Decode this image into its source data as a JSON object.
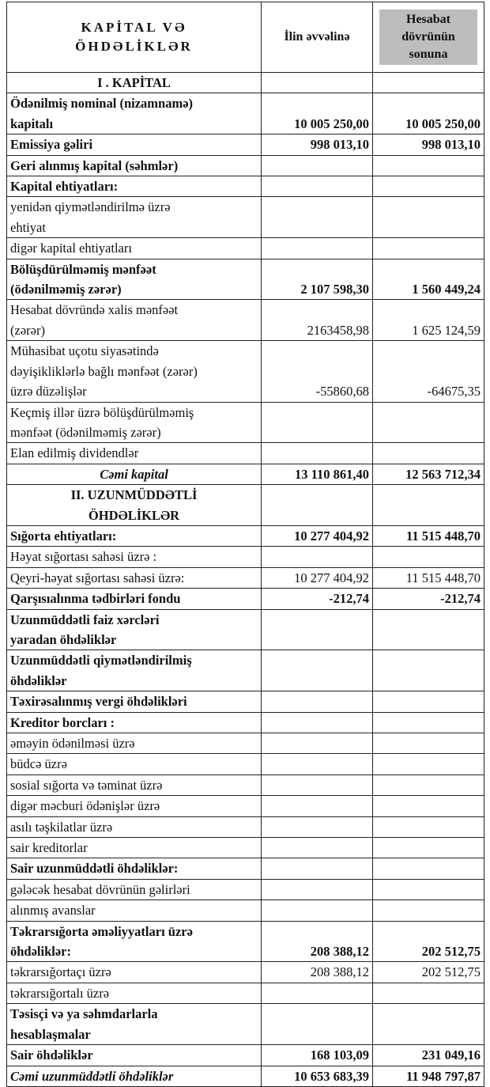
{
  "header": {
    "title": [
      "KAPİTAL VƏ",
      "ÖHDƏLİKLƏR"
    ],
    "start": "İlin əvvəlinə",
    "end": [
      "Hesabat",
      "dövrünün",
      "sonuna"
    ]
  },
  "table": {
    "rows": [
      {
        "label": [
          "I . KAPİTAL"
        ]
      },
      {
        "label": [
          "Ödənilmiş nominal (nizamnamə)",
          "kapitalı"
        ],
        "start": "10 005 250,00",
        "end": "10 005 250,00"
      },
      {
        "label": [
          "Emissiya gəliri"
        ],
        "start": "998 013,10",
        "end": "998 013,10"
      },
      {
        "label": [
          "Geri alınmış kapital (səhmlər)"
        ]
      },
      {
        "label": [
          "Kapital ehtiyatları:"
        ]
      },
      {
        "label": [
          "yenidən qiymətləndirilmə üzrə",
          "ehtiyat"
        ]
      },
      {
        "label": [
          "digər kapital ehtiyatları"
        ]
      },
      {
        "label": [
          "Bölüşdürülməmiş mənfəət",
          "(ödənilməmiş zərər)"
        ],
        "start": "2 107 598,30",
        "end": "1 560 449,24"
      },
      {
        "label": [
          "Hesabat dövründə xalis mənfəət",
          "(zərər)"
        ],
        "start": "2163458,98",
        "end": "1 625 124,59"
      },
      {
        "label": [
          "Mühasibat uçotu siyasətində",
          "dəyişikliklərlə bağlı mənfəət (zərər)",
          "üzrə düzəlişlər"
        ],
        "start": "-55860,68",
        "end": "-64675,35"
      },
      {
        "label": [
          "Keçmiş illər üzrə bölüşdürülməmiş",
          "mənfəət (ödənilməmiş zərər)"
        ]
      },
      {
        "label": [
          "Elan edilmiş dividendlər"
        ]
      },
      {
        "label": [
          "Cəmi kapital"
        ],
        "start": "13 110 861,40",
        "end": "12 563 712,34"
      },
      {
        "label": [
          "II. UZUNMÜDDƏTLİ",
          "ÖHDƏLİKLƏR"
        ]
      },
      {
        "label": [
          "Sığorta ehtiyatları:"
        ],
        "start": "10 277 404,92",
        "end": "11 515 448,70"
      },
      {
        "label": [
          "Həyat sığortası sahəsi üzrə :"
        ]
      },
      {
        "label": [
          "Qeyri-həyat sığortası sahəsi üzrə:"
        ],
        "start": "10 277 404,92",
        "end": "11 515 448,70"
      },
      {
        "label": [
          "Qarşısıalınma tədbirləri fondu"
        ],
        "start": "-212,74",
        "end": "-212,74"
      },
      {
        "label": [
          "Uzunmüddətli faiz xərcləri",
          "yaradan öhdəliklər"
        ]
      },
      {
        "label": [
          "Uzunmüddətli qiymətləndirilmiş",
          "öhdəliklər"
        ]
      },
      {
        "label": [
          "Təxirəsalınmış vergi öhdəlikləri"
        ]
      },
      {
        "label": [
          "Kreditor borcları :"
        ]
      },
      {
        "label": [
          "əməyin ödənilməsi üzrə"
        ]
      },
      {
        "label": [
          "büdcə üzrə"
        ]
      },
      {
        "label": [
          "sosial sığorta və təminat üzrə"
        ]
      },
      {
        "label": [
          "digər məcburi ödənişlər üzrə"
        ]
      },
      {
        "label": [
          "asılı təşkilatlar üzrə"
        ]
      },
      {
        "label": [
          "sair kreditorlar"
        ]
      },
      {
        "label": [
          "Sair uzunmüddətli öhdəliklər:"
        ]
      },
      {
        "label": [
          "gələcək hesabat dövrünün gəlirləri"
        ]
      },
      {
        "label": [
          "alınmış avanslar"
        ]
      },
      {
        "label": [
          "Təkrarsığorta əməliyyatları üzrə",
          "öhdəliklər:"
        ],
        "start": "208 388,12",
        "end": "202 512,75"
      },
      {
        "label": [
          "təkrarsığortaçı üzrə"
        ],
        "start": "208 388,12",
        "end": "202 512,75"
      },
      {
        "label": [
          "təkrarsığortalı üzrə"
        ]
      },
      {
        "label": [
          "Təsisçi və ya səhmdarlarla",
          "hesablaşmalar"
        ]
      },
      {
        "label": [
          "Sair öhdəliklər"
        ],
        "start": "168 103,09",
        "end": "231 049,16"
      },
      {
        "label": [
          "Cəmi uzunmüddətli öhdəliklər"
        ],
        "start": "10 653 683,39",
        "end": "11 948 797,87"
      }
    ]
  }
}
